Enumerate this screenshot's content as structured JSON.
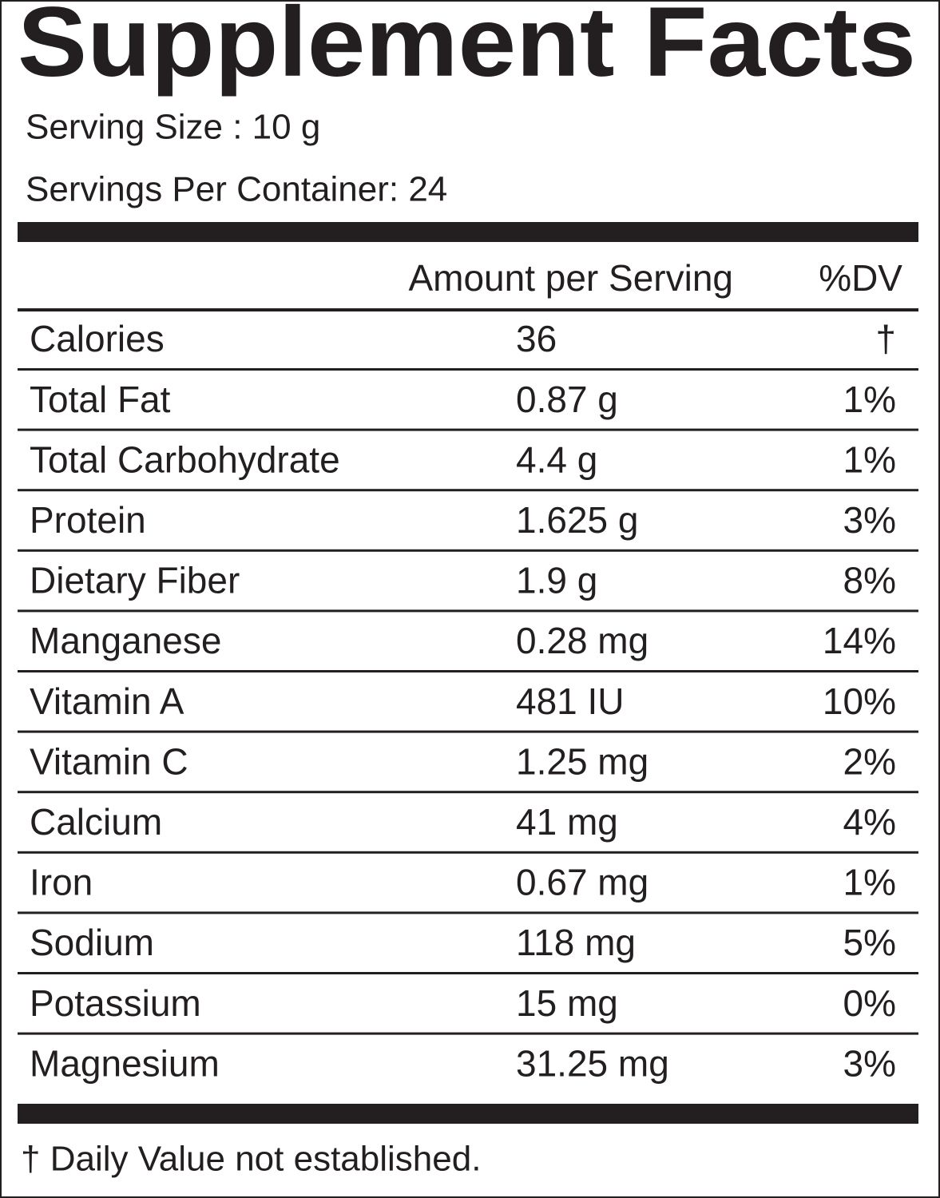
{
  "header": {
    "title": "Supplement Facts",
    "serving_size": "Serving Size : 10 g",
    "servings_per_container": "Servings Per Container: 24"
  },
  "table": {
    "columns": [
      "Amount per Serving",
      "%DV"
    ],
    "rows": [
      [
        "Calories",
        "36",
        "†"
      ],
      [
        "Total Fat",
        "0.87 g",
        "1%"
      ],
      [
        "Total Carbohydrate",
        "4.4 g",
        "1%"
      ],
      [
        "Protein",
        "1.625 g",
        "3%"
      ],
      [
        "Dietary Fiber",
        "1.9 g",
        "8%"
      ],
      [
        "Manganese",
        "0.28 mg",
        "14%"
      ],
      [
        "Vitamin A",
        "481 IU",
        "10%"
      ],
      [
        "Vitamin C",
        "1.25 mg",
        "2%"
      ],
      [
        "Calcium",
        "41 mg",
        "4%"
      ],
      [
        "Iron",
        "0.67 mg",
        "1%"
      ],
      [
        "Sodium",
        "118 mg",
        "5%"
      ],
      [
        "Potassium",
        "15 mg",
        "0%"
      ],
      [
        "Magnesium",
        "31.25 mg",
        "3%"
      ]
    ]
  },
  "footnote": "† Daily Value not established."
}
